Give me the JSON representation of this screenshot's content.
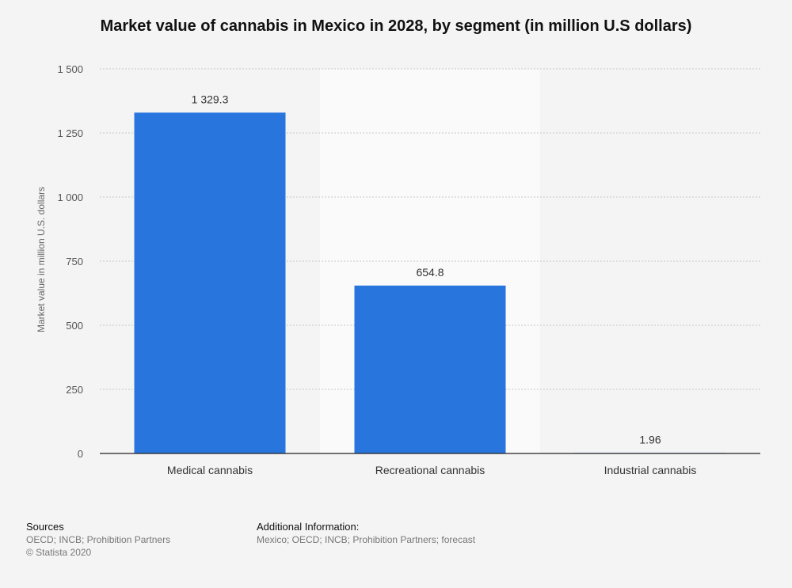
{
  "chart_data": {
    "type": "bar",
    "title": "Market value of cannabis in Mexico in 2028, by segment (in million U.S dollars)",
    "categories": [
      "Medical cannabis",
      "Recreational cannabis",
      "Industrial cannabis"
    ],
    "values": [
      1329.3,
      654.8,
      1.96
    ],
    "value_labels": [
      "1 329.3",
      "654.8",
      "1.96"
    ],
    "xlabel": "",
    "ylabel": "Market value in million U.S. dollars",
    "ylim": [
      0,
      1500
    ],
    "yticks": [
      0,
      250,
      500,
      750,
      1000,
      1250,
      1500
    ],
    "ytick_labels": [
      "0",
      "250",
      "500",
      "750",
      "1 000",
      "1 250",
      "1 500"
    ],
    "grid": true,
    "bar_color": "#2876dd",
    "highlight_band_color": "#fafafa"
  },
  "footer": {
    "sources_heading": "Sources",
    "sources_lines": [
      "OECD; INCB; Prohibition Partners",
      "© Statista 2020"
    ],
    "additional_heading": "Additional Information:",
    "additional_lines": [
      "Mexico; OECD; INCB; Prohibition Partners; forecast"
    ]
  }
}
